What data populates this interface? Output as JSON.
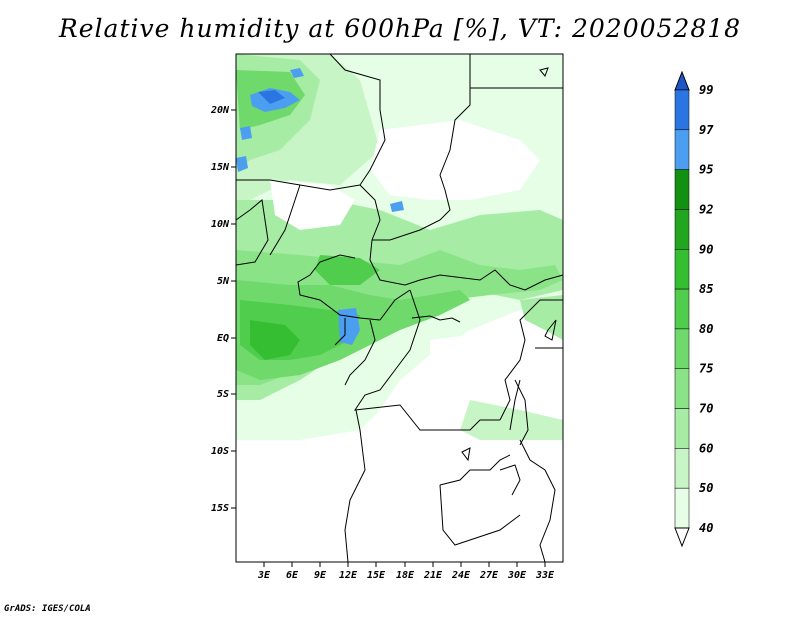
{
  "title": "Relative humidity at 600hPa [%], VT: 2020052818",
  "credit": "GrADS: IGES/COLA",
  "map": {
    "lat_labels": [
      "20N",
      "15N",
      "10N",
      "5N",
      "EQ",
      "5S",
      "10S",
      "15S"
    ],
    "lon_labels": [
      "3E",
      "6E",
      "9E",
      "12E",
      "15E",
      "18E",
      "21E",
      "24E",
      "27E",
      "30E",
      "33E"
    ]
  },
  "colorbar": {
    "levels": [
      "40",
      "50",
      "60",
      "70",
      "75",
      "80",
      "85",
      "90",
      "92",
      "95",
      "97",
      "99"
    ],
    "colors": [
      "#ffffff",
      "#e6fde6",
      "#c7f5c5",
      "#a7eca5",
      "#8be388",
      "#6fd96b",
      "#50cd4d",
      "#36be33",
      "#22a51f",
      "#129012",
      "#4c9ef0",
      "#2a75e2",
      "#1c56c7"
    ]
  },
  "colors": {
    "map_border": "#000000",
    "country_lines": "#000000"
  }
}
